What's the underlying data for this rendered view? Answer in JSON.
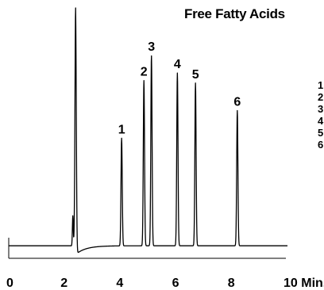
{
  "chart_data": {
    "type": "line",
    "title": "Free Fatty Acids",
    "xlabel": "",
    "ylabel": "",
    "x_ticks": [
      "0",
      "2",
      "4",
      "6",
      "8",
      "10 Min."
    ],
    "x_tick_values": [
      0,
      2,
      4,
      6,
      8,
      10
    ],
    "xlim": [
      0,
      10
    ],
    "ylim": [
      0,
      100
    ],
    "grid": false,
    "baseline": 5,
    "solvent_front": {
      "time": 2.4,
      "height": 100
    },
    "small_peak": {
      "time": 2.3,
      "height": 17
    },
    "peaks": [
      {
        "label": "1",
        "time": 4.05,
        "height": 48
      },
      {
        "label": "2",
        "time": 4.85,
        "height": 71
      },
      {
        "label": "3",
        "time": 5.12,
        "height": 81
      },
      {
        "label": "4",
        "time": 6.05,
        "height": 74
      },
      {
        "label": "5",
        "time": 6.7,
        "height": 70
      },
      {
        "label": "6",
        "time": 8.2,
        "height": 59
      }
    ],
    "legend": [
      "1",
      "2",
      "3",
      "4",
      "5",
      "6"
    ],
    "legend_placement": "right"
  }
}
